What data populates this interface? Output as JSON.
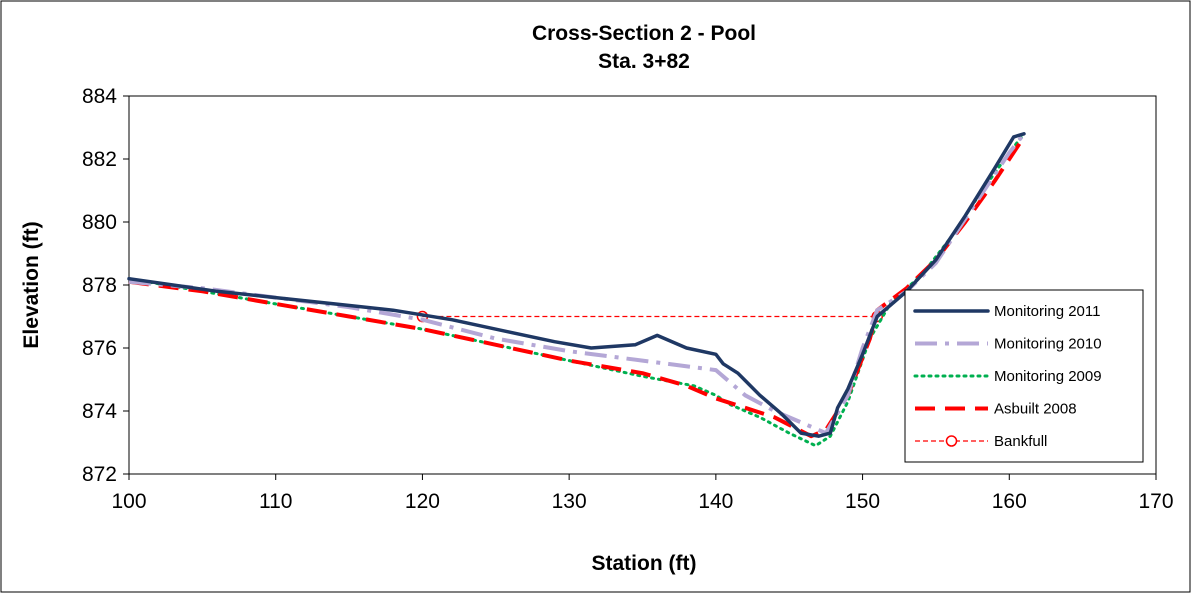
{
  "chart_data": {
    "type": "line",
    "title": "Cross-Section 2 - Pool",
    "subtitle": "Sta. 3+82",
    "xlabel": "Station (ft)",
    "ylabel": "Elevation (ft)",
    "xlim": [
      100,
      170
    ],
    "ylim": [
      872,
      884
    ],
    "xticks": [
      "100",
      "110",
      "120",
      "130",
      "140",
      "150",
      "160",
      "170"
    ],
    "yticks": [
      "872",
      "874",
      "876",
      "878",
      "880",
      "882",
      "884"
    ],
    "grid": false,
    "legend_position": "right",
    "series": [
      {
        "name": "Monitoring 2011",
        "color": "#1f3864",
        "style": "solid",
        "points": [
          [
            100,
            878.2
          ],
          [
            103,
            878.0
          ],
          [
            106,
            877.8
          ],
          [
            110,
            877.6
          ],
          [
            114,
            877.4
          ],
          [
            118,
            877.2
          ],
          [
            122,
            876.9
          ],
          [
            126,
            876.5
          ],
          [
            129,
            876.2
          ],
          [
            131.5,
            876.0
          ],
          [
            134.5,
            876.1
          ],
          [
            136,
            876.4
          ],
          [
            138,
            876.0
          ],
          [
            140,
            875.8
          ],
          [
            140.5,
            875.5
          ],
          [
            141.5,
            875.2
          ],
          [
            143,
            874.5
          ],
          [
            144.5,
            873.9
          ],
          [
            145.8,
            873.3
          ],
          [
            147,
            873.2
          ],
          [
            147.8,
            873.3
          ],
          [
            148.3,
            874.1
          ],
          [
            149,
            874.7
          ],
          [
            150,
            875.8
          ],
          [
            151,
            877.0
          ],
          [
            153,
            877.8
          ],
          [
            155,
            878.8
          ],
          [
            157,
            880.2
          ],
          [
            159,
            881.7
          ],
          [
            160.3,
            882.7
          ],
          [
            161,
            882.8
          ]
        ]
      },
      {
        "name": "Monitoring 2010",
        "color": "#b4a7d6",
        "style": "dashdot",
        "points": [
          [
            100,
            878.1
          ],
          [
            105,
            877.9
          ],
          [
            110,
            877.6
          ],
          [
            115,
            877.3
          ],
          [
            120,
            876.9
          ],
          [
            125,
            876.3
          ],
          [
            130,
            875.9
          ],
          [
            135,
            875.6
          ],
          [
            140,
            875.3
          ],
          [
            142,
            874.5
          ],
          [
            144,
            874.0
          ],
          [
            146,
            873.6
          ],
          [
            147.5,
            873.3
          ],
          [
            149,
            874.5
          ],
          [
            150,
            876.0
          ],
          [
            151,
            877.2
          ],
          [
            153,
            877.8
          ],
          [
            155,
            878.7
          ],
          [
            158,
            880.8
          ],
          [
            160,
            882.2
          ],
          [
            161,
            882.8
          ]
        ]
      },
      {
        "name": "Monitoring 2009",
        "color": "#00b050",
        "style": "dotted",
        "points": [
          [
            100,
            878.2
          ],
          [
            105,
            877.8
          ],
          [
            110,
            877.4
          ],
          [
            115,
            877.0
          ],
          [
            120,
            876.6
          ],
          [
            125,
            876.1
          ],
          [
            130,
            875.6
          ],
          [
            135,
            875.1
          ],
          [
            138.5,
            874.8
          ],
          [
            140,
            874.5
          ],
          [
            141,
            874.2
          ],
          [
            143,
            873.8
          ],
          [
            145,
            873.3
          ],
          [
            146.8,
            872.9
          ],
          [
            147.8,
            873.2
          ],
          [
            149,
            874.3
          ],
          [
            150.5,
            876.3
          ],
          [
            152,
            877.5
          ],
          [
            154,
            878.3
          ],
          [
            156,
            879.5
          ],
          [
            158,
            880.9
          ],
          [
            160,
            882.2
          ],
          [
            161,
            882.8
          ]
        ]
      },
      {
        "name": "Asbuilt 2008",
        "color": "#ff0000",
        "style": "dashed",
        "points": [
          [
            100,
            878.1
          ],
          [
            105,
            877.8
          ],
          [
            110,
            877.4
          ],
          [
            115,
            877.0
          ],
          [
            120,
            876.6
          ],
          [
            125,
            876.1
          ],
          [
            130,
            875.6
          ],
          [
            135,
            875.2
          ],
          [
            138,
            874.8
          ],
          [
            140,
            874.4
          ],
          [
            142,
            874.1
          ],
          [
            144,
            873.8
          ],
          [
            146.5,
            873.2
          ],
          [
            147.5,
            873.4
          ],
          [
            149,
            874.5
          ],
          [
            150.5,
            876.3
          ],
          [
            151,
            877.2
          ],
          [
            153,
            877.9
          ],
          [
            155,
            878.8
          ],
          [
            157,
            880.0
          ],
          [
            159,
            881.3
          ],
          [
            161,
            882.7
          ]
        ]
      },
      {
        "name": "Bankfull",
        "color": "#ff0000",
        "style": "thin-dashed",
        "marker": "open-circle",
        "points": [
          [
            120,
            877.0
          ],
          [
            151,
            877.0
          ]
        ]
      }
    ]
  }
}
